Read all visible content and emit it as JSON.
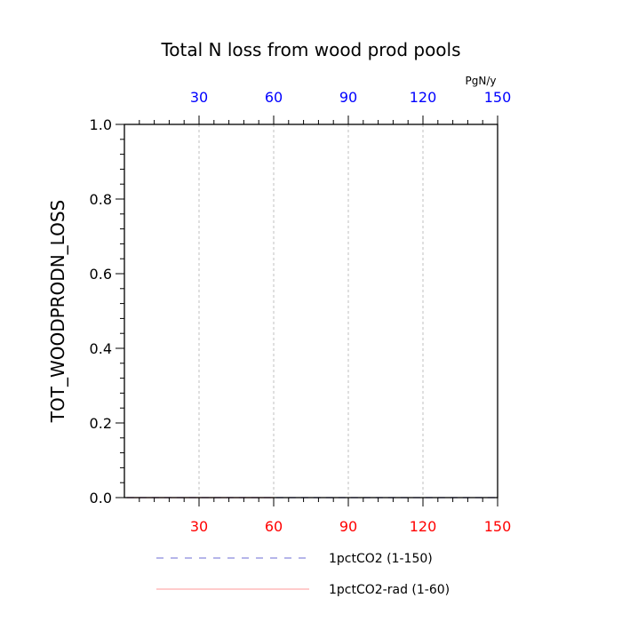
{
  "chart_data": {
    "type": "line",
    "title": "Total N loss from wood prod pools",
    "ylabel": "TOT_WOODPRODN_LOSS",
    "units": "PgN/y",
    "xlim": [
      0,
      150
    ],
    "ylim": [
      0,
      1
    ],
    "x_ticks_top": [
      "30",
      "60",
      "90",
      "120",
      "150"
    ],
    "x_ticks_bottom": [
      "30",
      "60",
      "90",
      "120",
      "150"
    ],
    "y_ticks": [
      "0.0",
      "0.2",
      "0.4",
      "0.6",
      "0.8",
      "1.0"
    ],
    "top_axis_color": "#0000ff",
    "bottom_axis_color": "#ff0000",
    "grid": "vertical dashed at major x ticks",
    "series": [
      {
        "name": "1pctCO2 (1-150)",
        "color": "#6b6bd6",
        "style": "dashed",
        "x_range": [
          1,
          150
        ],
        "values_constant": 0
      },
      {
        "name": "1pctCO2-rad (1-60)",
        "color": "#ff9999",
        "style": "solid",
        "x_range": [
          1,
          60
        ],
        "values_constant": 0
      }
    ]
  }
}
